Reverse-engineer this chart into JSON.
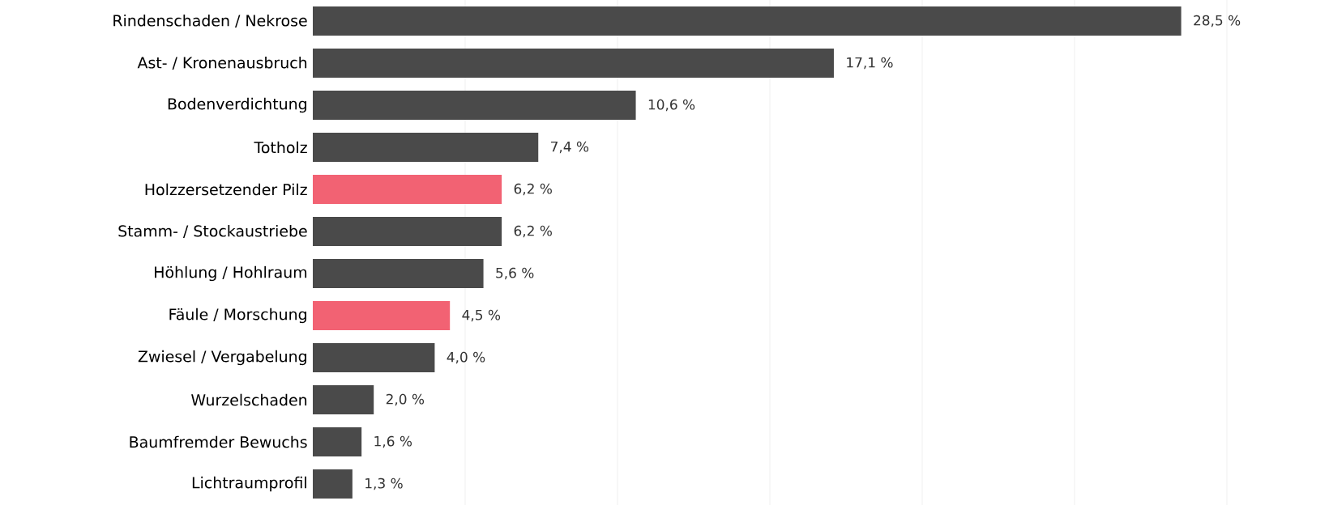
{
  "chart_data": {
    "type": "bar",
    "orientation": "horizontal",
    "categories": [
      "Rindenschaden / Nekrose",
      "Ast- / Kronenausbruch",
      "Bodenverdichtung",
      "Totholz",
      "Holzzersetzender Pilz",
      "Stamm- / Stockaustriebe",
      "Höhlung / Hohlraum",
      "Fäule / Morschung",
      "Zwiesel / Vergabelung",
      "Wurzelschaden",
      "Baumfremder Bewuchs",
      "Lichtraumprofil"
    ],
    "values": [
      28.5,
      17.1,
      10.6,
      7.4,
      6.2,
      6.2,
      5.6,
      4.5,
      4.0,
      2.0,
      1.6,
      1.3
    ],
    "value_labels": [
      "28,5 %",
      "17,1 %",
      "10,6 %",
      "7,4 %",
      "6,2 %",
      "6,2 %",
      "5,6 %",
      "4,5 %",
      "4,0 %",
      "2,0 %",
      "1,6 %",
      "1,3 %"
    ],
    "colors": [
      "#4a4a4a",
      "#4a4a4a",
      "#4a4a4a",
      "#4a4a4a",
      "#f26273",
      "#4a4a4a",
      "#4a4a4a",
      "#f26273",
      "#4a4a4a",
      "#4a4a4a",
      "#4a4a4a",
      "#4a4a4a"
    ],
    "xticks": [
      {
        "value": 5,
        "label": null
      },
      {
        "value": 10,
        "label": null
      },
      {
        "value": 15,
        "label": null
      },
      {
        "value": 20,
        "label": null
      },
      {
        "value": 25,
        "label": null
      },
      {
        "value": 30,
        "label": null
      }
    ],
    "grid": "x",
    "tick_labels": "y"
  }
}
